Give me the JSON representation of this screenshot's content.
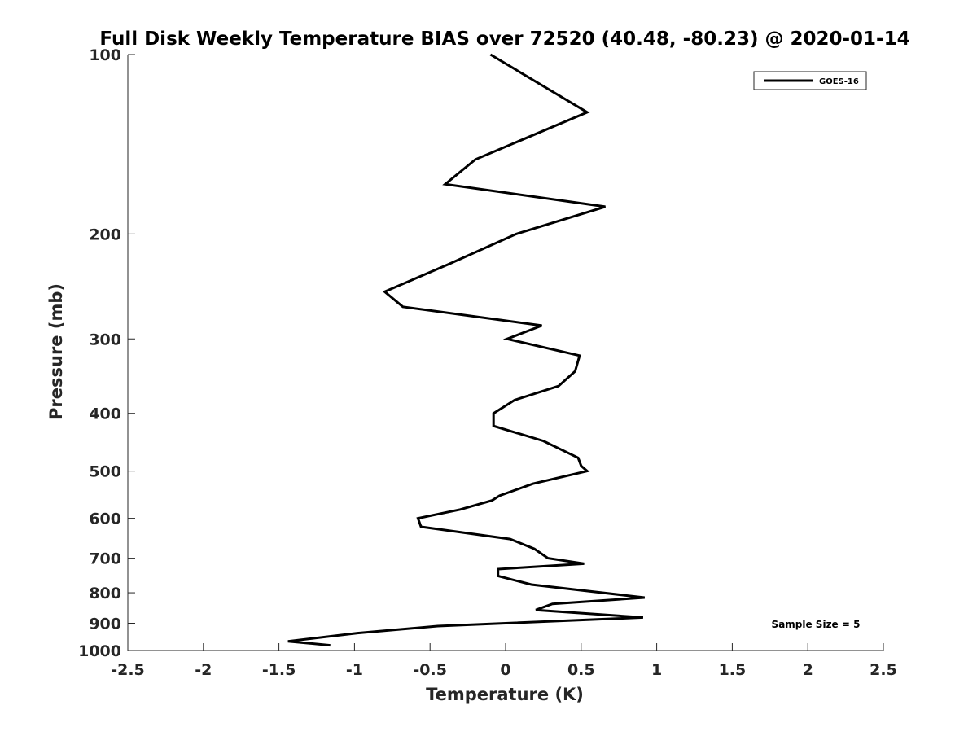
{
  "chart_data": {
    "type": "line",
    "title": "Full Disk Weekly Temperature BIAS over 72520 (40.48, -80.23) @ 2020-01-14",
    "xlabel": "Temperature (K)",
    "ylabel": "Pressure (mb)",
    "xlim": [
      -2.5,
      2.5
    ],
    "ylim": [
      100,
      1000
    ],
    "y_scale": "log",
    "y_reversed": true,
    "grid": false,
    "x_ticks": [
      -2.5,
      -2,
      -1.5,
      -1,
      -0.5,
      0,
      0.5,
      1,
      1.5,
      2,
      2.5
    ],
    "x_tick_labels": [
      "-2.5",
      "-2",
      "-1.5",
      "-1",
      "-0.5",
      "0",
      "0.5",
      "1",
      "1.5",
      "2",
      "2.5"
    ],
    "y_ticks": [
      100,
      200,
      300,
      400,
      500,
      600,
      700,
      800,
      900,
      1000
    ],
    "y_tick_labels": [
      "100",
      "200",
      "300",
      "400",
      "500",
      "600",
      "700",
      "800",
      "900",
      "1000"
    ],
    "legend_position": "top-right",
    "annotation": "Sample Size = 5",
    "series": [
      {
        "name": "GOES-16",
        "color": "#000000",
        "points": [
          {
            "x": -0.1,
            "y": 100
          },
          {
            "x": 0.54,
            "y": 125
          },
          {
            "x": -0.2,
            "y": 150
          },
          {
            "x": -0.4,
            "y": 165
          },
          {
            "x": 0.66,
            "y": 180
          },
          {
            "x": 0.07,
            "y": 200
          },
          {
            "x": -0.38,
            "y": 225
          },
          {
            "x": -0.8,
            "y": 250
          },
          {
            "x": -0.68,
            "y": 265
          },
          {
            "x": 0.24,
            "y": 285
          },
          {
            "x": 0.01,
            "y": 300
          },
          {
            "x": 0.49,
            "y": 320
          },
          {
            "x": 0.46,
            "y": 340
          },
          {
            "x": 0.35,
            "y": 360
          },
          {
            "x": 0.06,
            "y": 380
          },
          {
            "x": -0.08,
            "y": 400
          },
          {
            "x": -0.08,
            "y": 420
          },
          {
            "x": 0.25,
            "y": 445
          },
          {
            "x": 0.48,
            "y": 475
          },
          {
            "x": 0.5,
            "y": 490
          },
          {
            "x": 0.54,
            "y": 500
          },
          {
            "x": 0.18,
            "y": 525
          },
          {
            "x": -0.04,
            "y": 550
          },
          {
            "x": -0.09,
            "y": 560
          },
          {
            "x": -0.3,
            "y": 580
          },
          {
            "x": -0.58,
            "y": 600
          },
          {
            "x": -0.56,
            "y": 620
          },
          {
            "x": 0.03,
            "y": 650
          },
          {
            "x": 0.19,
            "y": 675
          },
          {
            "x": 0.28,
            "y": 700
          },
          {
            "x": 0.52,
            "y": 715
          },
          {
            "x": -0.05,
            "y": 730
          },
          {
            "x": -0.05,
            "y": 750
          },
          {
            "x": 0.17,
            "y": 775
          },
          {
            "x": 0.92,
            "y": 815
          },
          {
            "x": 0.31,
            "y": 835
          },
          {
            "x": 0.2,
            "y": 855
          },
          {
            "x": 0.91,
            "y": 880
          },
          {
            "x": -0.45,
            "y": 910
          },
          {
            "x": -0.98,
            "y": 935
          },
          {
            "x": -1.44,
            "y": 965
          },
          {
            "x": -1.16,
            "y": 980
          }
        ]
      }
    ]
  }
}
